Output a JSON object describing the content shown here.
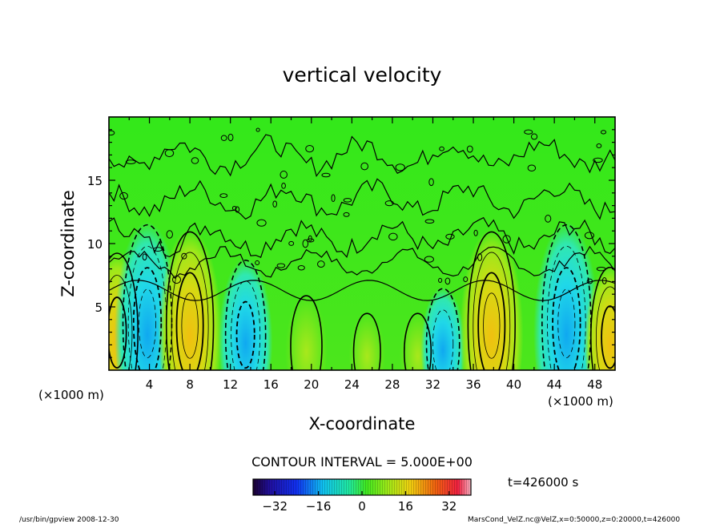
{
  "chart_data": {
    "type": "heatmap",
    "title": "vertical velocity",
    "xlabel": "X-coordinate",
    "ylabel": "Z-coordinate",
    "x_unit_label": "(×1000 m)",
    "z_unit_label": "(×1000 m)",
    "xlim": [
      0,
      50
    ],
    "ylim": [
      0,
      20
    ],
    "x_ticks": [
      4,
      8,
      12,
      16,
      20,
      24,
      28,
      32,
      36,
      40,
      44,
      48
    ],
    "y_ticks": [
      5,
      10,
      15
    ],
    "contour_interval_label": "CONTOUR INTERVAL = 5.000E+00",
    "time_label": "t=426000 s",
    "colorbar": {
      "range": [
        -40,
        40
      ],
      "ticks": [
        -32,
        -16,
        0,
        16,
        32
      ],
      "colormap": "rainbow"
    },
    "cells": [
      {
        "x": 0.8,
        "amplitude": 22
      },
      {
        "x": 3.8,
        "amplitude": -30
      },
      {
        "x": 8.0,
        "amplitude": 28
      },
      {
        "x": 13.5,
        "amplitude": -20
      },
      {
        "x": 19.5,
        "amplitude": 10
      },
      {
        "x": 25.5,
        "amplitude": 5
      },
      {
        "x": 30.5,
        "amplitude": 5
      },
      {
        "x": 33.0,
        "amplitude": -12
      },
      {
        "x": 37.8,
        "amplitude": 28
      },
      {
        "x": 45.2,
        "amplitude": -30
      },
      {
        "x": 49.5,
        "amplitude": 18
      }
    ]
  },
  "footer": {
    "left": "/usr/bin/gpview   2008-12-30",
    "right": "MarsCond_VelZ.nc@VelZ,x=0:50000,z=0:20000,t=426000"
  }
}
